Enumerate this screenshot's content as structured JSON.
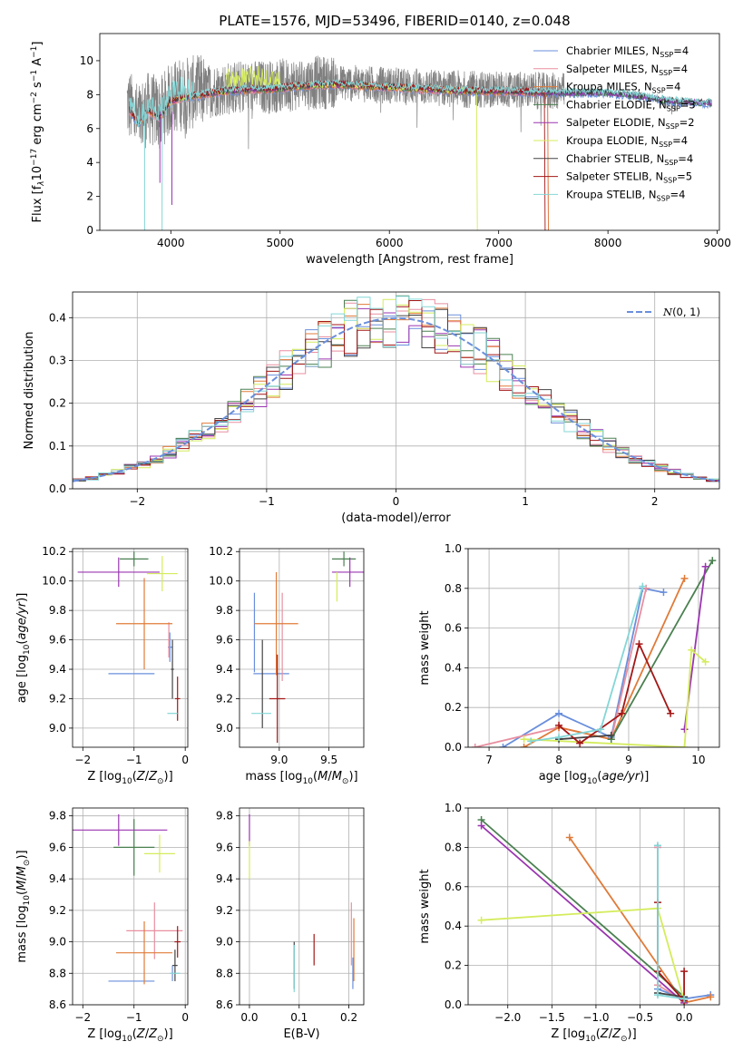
{
  "page_title": "PLATE=1576, MJD=53496, FIBERID=0140, z=0.048",
  "colors": {
    "chabrier_miles": "#6a8fdc",
    "salpeter_miles": "#e88fa0",
    "kroupa_miles": "#e07b39",
    "chabrier_elodie": "#4a8050",
    "salpeter_elodie": "#9a35b0",
    "kroupa_elodie": "#d4ec5c",
    "chabrier_stelib": "#444444",
    "salpeter_stelib": "#a31717",
    "kroupa_stelib": "#84d6d6",
    "data": "#808080",
    "gaussian": "#6a8fdc"
  },
  "chart_data": [
    {
      "type": "line",
      "xlabel": "wavelength [Angstrom, rest frame]",
      "ylabel": "Flux [f",
      "xlim": [
        3350,
        9020
      ],
      "ylim": [
        0,
        11.6
      ],
      "xticks": [
        4000,
        5000,
        6000,
        7000,
        8000,
        9000
      ],
      "yticks": [
        0,
        2,
        4,
        6,
        8,
        10
      ],
      "legend_location": "upper right",
      "series": [
        {
          "name": "Chabrier MILES, N",
          "sub": "SSP",
          "suffix": "=4",
          "key": "chabrier_miles"
        },
        {
          "name": "Salpeter MILES, N",
          "sub": "SSP",
          "suffix": "=4",
          "key": "salpeter_miles"
        },
        {
          "name": "Kroupa MILES, N",
          "sub": "SSP",
          "suffix": "=4",
          "key": "kroupa_miles"
        },
        {
          "name": "Chabrier ELODIE, N",
          "sub": "SSP",
          "suffix": "=3",
          "key": "chabrier_elodie"
        },
        {
          "name": "Salpeter ELODIE, N",
          "sub": "SSP",
          "suffix": "=2",
          "key": "salpeter_elodie"
        },
        {
          "name": "Kroupa ELODIE, N",
          "sub": "SSP",
          "suffix": "=4",
          "key": "kroupa_elodie"
        },
        {
          "name": "Chabrier STELIB, N",
          "sub": "SSP",
          "suffix": "=4",
          "key": "chabrier_stelib"
        },
        {
          "name": "Salpeter STELIB, N",
          "sub": "SSP",
          "suffix": "=5",
          "key": "salpeter_stelib"
        },
        {
          "name": "Kroupa STELIB, N",
          "sub": "SSP",
          "suffix": "=4",
          "key": "kroupa_stelib"
        }
      ],
      "continuum": [
        [
          3600,
          7.3
        ],
        [
          3700,
          6.3
        ],
        [
          3800,
          7.0
        ],
        [
          3900,
          6.6
        ],
        [
          4000,
          7.6
        ],
        [
          4100,
          7.8
        ],
        [
          4300,
          8.0
        ],
        [
          4500,
          8.2
        ],
        [
          4700,
          8.3
        ],
        [
          4900,
          8.3
        ],
        [
          5200,
          8.5
        ],
        [
          5500,
          8.6
        ],
        [
          5800,
          8.5
        ],
        [
          6100,
          8.4
        ],
        [
          6400,
          8.3
        ],
        [
          6700,
          8.2
        ],
        [
          7000,
          8.2
        ],
        [
          7400,
          8.1
        ],
        [
          7600,
          8.1
        ],
        [
          8000,
          8.1
        ],
        [
          8300,
          7.9
        ],
        [
          8600,
          7.6
        ],
        [
          8900,
          7.5
        ]
      ]
    },
    {
      "type": "step",
      "xlabel": "(data-model)/error",
      "ylabel": "Normed distribution",
      "xlim": [
        -2.5,
        2.5
      ],
      "ylim": [
        0,
        0.46
      ],
      "xticks": [
        -2,
        -1,
        0,
        1,
        2
      ],
      "yticks": [
        0.0,
        0.1,
        0.2,
        0.3,
        0.4
      ],
      "bin_edges_start": -2.5,
      "bin_width": 0.1,
      "legend": "N(0,1)",
      "legend_location": "upper right"
    },
    {
      "type": "scatter",
      "xlabel": "Z [log",
      "ylabel": "age  [log",
      "xlim": [
        -2.2,
        0.05
      ],
      "ylim": [
        8.87,
        10.22
      ],
      "xticks": [
        -2,
        -1,
        0
      ],
      "yticks": [
        9.0,
        9.2,
        9.4,
        9.6,
        9.8,
        10.0,
        10.2
      ],
      "points": [
        {
          "key": "chabrier_miles",
          "x": -1.05,
          "xerr": 0.45,
          "y": 9.37,
          "yerr": 0.0
        },
        {
          "key": "chabrier_miles",
          "x": -0.3,
          "xerr": 0.04,
          "y": 9.55,
          "yerr": 0.1
        },
        {
          "key": "salpeter_miles",
          "x": -0.32,
          "xerr": 0.02,
          "y": 9.6,
          "yerr": 0.12
        },
        {
          "key": "kroupa_miles",
          "x": -0.8,
          "xerr": 0.55,
          "y": 9.71,
          "yerr": 0.31
        },
        {
          "key": "chabrier_elodie",
          "x": -1.0,
          "xerr": 0.28,
          "y": 10.15,
          "yerr": 0.05
        },
        {
          "key": "salpeter_elodie",
          "x": -1.3,
          "xerr": 0.8,
          "y": 10.06,
          "yerr": 0.1
        },
        {
          "key": "kroupa_elodie",
          "x": -0.45,
          "xerr": 0.3,
          "y": 10.05,
          "yerr": 0.12
        },
        {
          "key": "chabrier_stelib",
          "x": -0.25,
          "xerr": 0.03,
          "y": 9.4,
          "yerr": 0.2
        },
        {
          "key": "salpeter_stelib",
          "x": -0.15,
          "xerr": 0.05,
          "y": 9.2,
          "yerr": 0.15
        },
        {
          "key": "kroupa_stelib",
          "x": -0.25,
          "xerr": 0.1,
          "y": 9.1,
          "yerr": 0.0
        }
      ]
    },
    {
      "type": "scatter",
      "xlabel": "mass [log",
      "ylabel": "",
      "xlim": [
        8.6,
        9.85
      ],
      "ylim": [
        8.87,
        10.22
      ],
      "xticks": [
        9.0,
        9.5
      ],
      "yticks": [
        9.0,
        9.2,
        9.4,
        9.6,
        9.8,
        10.0,
        10.2
      ],
      "points": [
        {
          "key": "chabrier_miles",
          "x": 8.92,
          "xerr": 0.18,
          "y": 9.37,
          "yerr": 0.0
        },
        {
          "key": "chabrier_miles",
          "x": 8.75,
          "xerr": 0.0,
          "y": 9.65,
          "yerr": 0.27
        },
        {
          "key": "salpeter_miles",
          "x": 9.03,
          "xerr": 0.0,
          "y": 9.62,
          "yerr": 0.3
        },
        {
          "key": "kroupa_miles",
          "x": 8.97,
          "xerr": 0.22,
          "y": 9.71,
          "yerr": 0.35
        },
        {
          "key": "chabrier_elodie",
          "x": 9.65,
          "xerr": 0.12,
          "y": 10.15,
          "yerr": 0.05
        },
        {
          "key": "salpeter_elodie",
          "x": 9.71,
          "xerr": 0.18,
          "y": 10.06,
          "yerr": 0.1
        },
        {
          "key": "kroupa_elodie",
          "x": 9.58,
          "xerr": 0.0,
          "y": 9.96,
          "yerr": 0.1
        },
        {
          "key": "chabrier_stelib",
          "x": 8.83,
          "xerr": 0.0,
          "y": 9.3,
          "yerr": 0.3
        },
        {
          "key": "salpeter_stelib",
          "x": 8.98,
          "xerr": 0.08,
          "y": 9.2,
          "yerr": 0.3
        },
        {
          "key": "kroupa_stelib",
          "x": 8.82,
          "xerr": 0.1,
          "y": 9.1,
          "yerr": 0.0
        }
      ]
    },
    {
      "type": "line",
      "xlabel": "age  [log",
      "ylabel": "mass weight",
      "xlim": [
        6.7,
        10.3
      ],
      "ylim": [
        0,
        1.0
      ],
      "xticks": [
        7,
        8,
        9,
        10
      ],
      "yticks": [
        0.0,
        0.2,
        0.4,
        0.6,
        0.8,
        1.0
      ],
      "series": [
        {
          "key": "chabrier_miles",
          "x": [
            7.2,
            8.0,
            8.75,
            9.2,
            9.5
          ],
          "y": [
            0.0,
            0.17,
            0.05,
            0.8,
            0.78
          ]
        },
        {
          "key": "salpeter_miles",
          "x": [
            6.8,
            8.0,
            8.75,
            9.25
          ],
          "y": [
            0.0,
            0.1,
            0.04,
            0.8
          ]
        },
        {
          "key": "kroupa_miles",
          "x": [
            7.5,
            8.0,
            8.75,
            9.8
          ],
          "y": [
            0.0,
            0.1,
            0.04,
            0.85
          ]
        },
        {
          "key": "chabrier_elodie",
          "x": [
            8.75,
            10.2
          ],
          "y": [
            0.04,
            0.94
          ]
        },
        {
          "key": "salpeter_elodie",
          "x": [
            9.8,
            10.1
          ],
          "y": [
            0.09,
            0.91
          ]
        },
        {
          "key": "kroupa_elodie",
          "x": [
            7.5,
            9.8,
            9.9,
            10.1
          ],
          "y": [
            0.04,
            0.0,
            0.49,
            0.43
          ]
        },
        {
          "key": "chabrier_stelib",
          "x": [
            8.0,
            8.75
          ],
          "y": [
            0.04,
            0.06
          ]
        },
        {
          "key": "salpeter_stelib",
          "x": [
            8.0,
            8.3,
            8.9,
            9.15,
            9.6
          ],
          "y": [
            0.11,
            0.02,
            0.17,
            0.52,
            0.17
          ]
        },
        {
          "key": "kroupa_stelib",
          "x": [
            7.6,
            8.0,
            8.6,
            9.2
          ],
          "y": [
            0.03,
            0.05,
            0.09,
            0.81
          ]
        }
      ]
    },
    {
      "type": "scatter",
      "xlabel": "Z [log",
      "ylabel": "mass [log",
      "xlim": [
        -2.2,
        0.05
      ],
      "ylim": [
        8.6,
        9.85
      ],
      "xticks": [
        -2,
        -1,
        0
      ],
      "yticks": [
        8.6,
        8.8,
        9.0,
        9.2,
        9.4,
        9.6,
        9.8
      ],
      "points": [
        {
          "key": "chabrier_miles",
          "x": -1.05,
          "xerr": 0.45,
          "y": 8.75,
          "yerr": 0.0
        },
        {
          "key": "chabrier_miles",
          "x": -0.25,
          "xerr": 0.0,
          "y": 8.8,
          "yerr": 0.05
        },
        {
          "key": "salpeter_miles",
          "x": -0.6,
          "xerr": 0.55,
          "y": 9.07,
          "yerr": 0.18
        },
        {
          "key": "kroupa_miles",
          "x": -0.8,
          "xerr": 0.55,
          "y": 8.93,
          "yerr": 0.2
        },
        {
          "key": "chabrier_elodie",
          "x": -1.0,
          "xerr": 0.4,
          "y": 9.6,
          "yerr": 0.18
        },
        {
          "key": "salpeter_elodie",
          "x": -1.3,
          "xerr": 0.95,
          "y": 9.71,
          "yerr": 0.1
        },
        {
          "key": "kroupa_elodie",
          "x": -0.5,
          "xerr": 0.3,
          "y": 9.56,
          "yerr": 0.12
        },
        {
          "key": "chabrier_stelib",
          "x": -0.2,
          "xerr": 0.05,
          "y": 8.85,
          "yerr": 0.1
        },
        {
          "key": "salpeter_stelib",
          "x": -0.15,
          "xerr": 0.06,
          "y": 9.0,
          "yerr": 0.1
        },
        {
          "key": "kroupa_stelib",
          "x": -0.2,
          "xerr": 0.1,
          "y": 8.8,
          "yerr": 0.0
        }
      ]
    },
    {
      "type": "scatter",
      "xlabel": "E(B-V)",
      "ylabel": "",
      "xlim": [
        -0.02,
        0.23
      ],
      "ylim": [
        8.6,
        9.85
      ],
      "xticks": [
        0.0,
        0.1,
        0.2
      ],
      "yticks": [
        8.6,
        8.8,
        9.0,
        9.2,
        9.4,
        9.6,
        9.8
      ],
      "points": [
        {
          "key": "salpeter_elodie",
          "x": 0.0,
          "xerr": 0.0,
          "y": 9.71,
          "yerr": 0.1
        },
        {
          "key": "kroupa_elodie",
          "x": 0.0,
          "xerr": 0.0,
          "y": 9.52,
          "yerr": 0.12
        },
        {
          "key": "chabrier_stelib",
          "x": 0.09,
          "xerr": 0.0,
          "y": 8.85,
          "yerr": 0.15
        },
        {
          "key": "kroupa_stelib",
          "x": 0.09,
          "xerr": 0.0,
          "y": 8.83,
          "yerr": 0.15
        },
        {
          "key": "salpeter_stelib",
          "x": 0.13,
          "xerr": 0.0,
          "y": 8.95,
          "yerr": 0.1
        },
        {
          "key": "salpeter_miles",
          "x": 0.205,
          "xerr": 0.0,
          "y": 9.05,
          "yerr": 0.2
        },
        {
          "key": "kroupa_miles",
          "x": 0.21,
          "xerr": 0.0,
          "y": 8.95,
          "yerr": 0.2
        },
        {
          "key": "chabrier_miles",
          "x": 0.208,
          "xerr": 0.0,
          "y": 8.8,
          "yerr": 0.1
        }
      ]
    },
    {
      "type": "line",
      "xlabel": "Z [log",
      "ylabel": "mass weight",
      "xlim": [
        -2.45,
        0.4
      ],
      "ylim": [
        0,
        1.0
      ],
      "xticks": [
        -2.0,
        -1.5,
        -1.0,
        -0.5,
        0.0
      ],
      "yticks": [
        0.0,
        0.2,
        0.4,
        0.6,
        0.8,
        1.0
      ],
      "series": [
        {
          "key": "chabrier_miles",
          "x": [
            -0.3,
            -0.3,
            0.0,
            0.3
          ],
          "y": [
            0.8,
            0.08,
            0.03,
            0.05
          ]
        },
        {
          "key": "salpeter_miles",
          "x": [
            -0.3,
            -0.3,
            0.0
          ],
          "y": [
            0.8,
            0.1,
            0.02
          ]
        },
        {
          "key": "kroupa_miles",
          "x": [
            -1.3,
            0.0,
            0.3
          ],
          "y": [
            0.85,
            0.01,
            0.04
          ]
        },
        {
          "key": "chabrier_elodie",
          "x": [
            -2.3,
            0.0
          ],
          "y": [
            0.94,
            0.04
          ]
        },
        {
          "key": "salpeter_elodie",
          "x": [
            -2.3,
            0.0
          ],
          "y": [
            0.91,
            0.01
          ]
        },
        {
          "key": "kroupa_elodie",
          "x": [
            -2.3,
            -0.3,
            0.0
          ],
          "y": [
            0.43,
            0.49,
            0.02
          ]
        },
        {
          "key": "chabrier_stelib",
          "x": [
            -0.3,
            0.0
          ],
          "y": [
            0.06,
            0.04
          ]
        },
        {
          "key": "salpeter_stelib",
          "x": [
            -0.3,
            -0.3,
            0.0,
            0.0
          ],
          "y": [
            0.52,
            0.17,
            0.02,
            0.17
          ]
        },
        {
          "key": "kroupa_stelib",
          "x": [
            -0.3,
            -0.3,
            0.0
          ],
          "y": [
            0.81,
            0.05,
            0.03
          ]
        }
      ]
    }
  ]
}
